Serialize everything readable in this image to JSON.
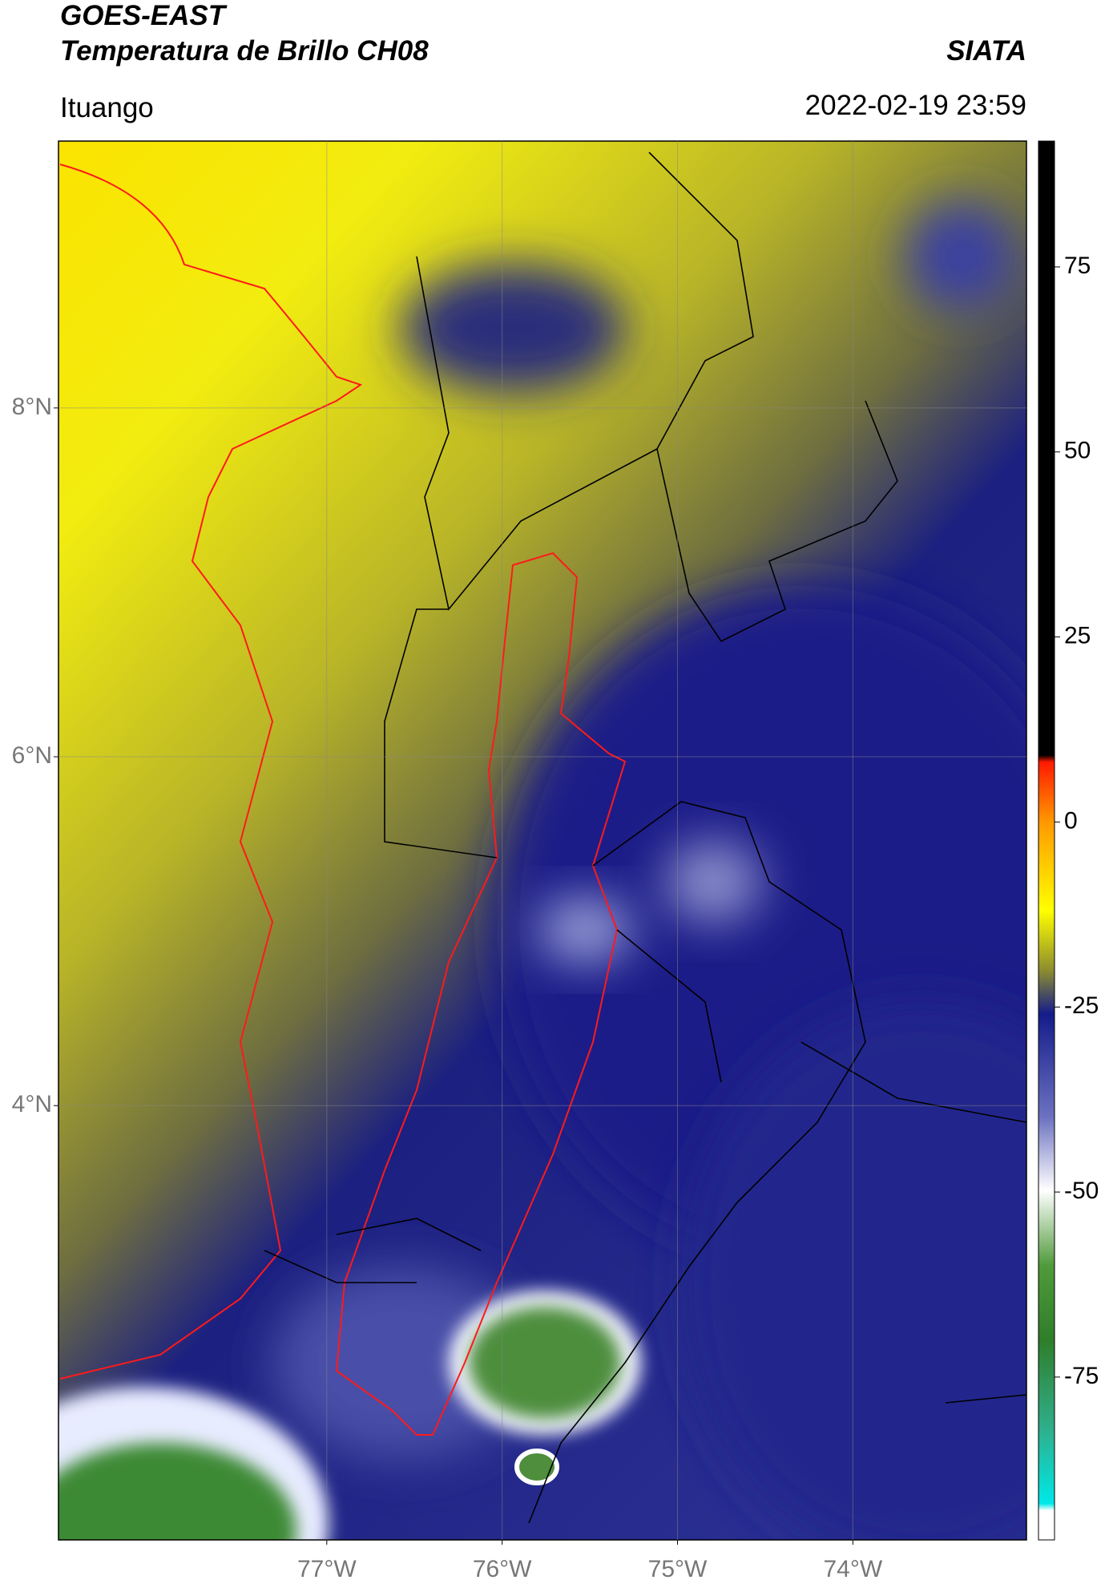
{
  "header": {
    "title": "GOES-EAST",
    "subtitle": "Temperatura de Brillo CH08",
    "source": "SIATA",
    "location": "Ituango",
    "datetime": "2022-02-19 23:59"
  },
  "map": {
    "xlim": [
      -78.53,
      -73.01
    ],
    "ylim": [
      1.51,
      9.53
    ],
    "lon_ticks": [
      {
        "value": -77,
        "label": "77°W"
      },
      {
        "value": -76,
        "label": "76°W"
      },
      {
        "value": -75,
        "label": "75°W"
      },
      {
        "value": -74,
        "label": "74°W"
      }
    ],
    "lat_ticks": [
      {
        "value": 8,
        "label": "8°N"
      },
      {
        "value": 6,
        "label": "6°N"
      },
      {
        "value": 4,
        "label": "4°N"
      }
    ]
  },
  "colorbar": {
    "lim": [
      -97,
      92
    ],
    "ticks": [
      75,
      50,
      25,
      0,
      -25,
      -50,
      -75
    ]
  }
}
